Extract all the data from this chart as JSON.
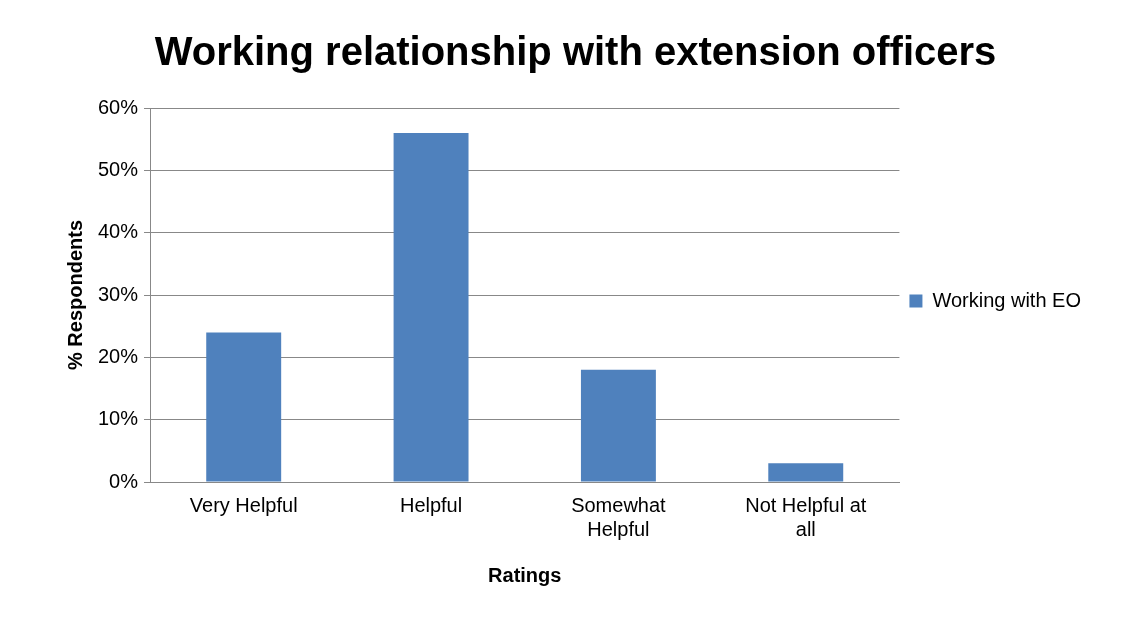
{
  "chart_data": {
    "type": "bar",
    "title": "Working relationship with extension officers",
    "xlabel": "Ratings",
    "ylabel": "% Respondents",
    "categories": [
      "Very Helpful",
      "Helpful",
      "Somewhat Helpful",
      "Not Helpful at all"
    ],
    "series": [
      {
        "name": "Working with EO",
        "color": "#4f81bd",
        "values": [
          24,
          56,
          18,
          3
        ]
      }
    ],
    "ylim": [
      0,
      60
    ],
    "yticks": [
      {
        "value": 0,
        "label": "0%"
      },
      {
        "value": 10,
        "label": "10%"
      },
      {
        "value": 20,
        "label": "20%"
      },
      {
        "value": 30,
        "label": "30%"
      },
      {
        "value": 40,
        "label": "40%"
      },
      {
        "value": 50,
        "label": "50%"
      },
      {
        "value": 60,
        "label": "60%"
      }
    ],
    "grid": "y",
    "legend": "right"
  }
}
